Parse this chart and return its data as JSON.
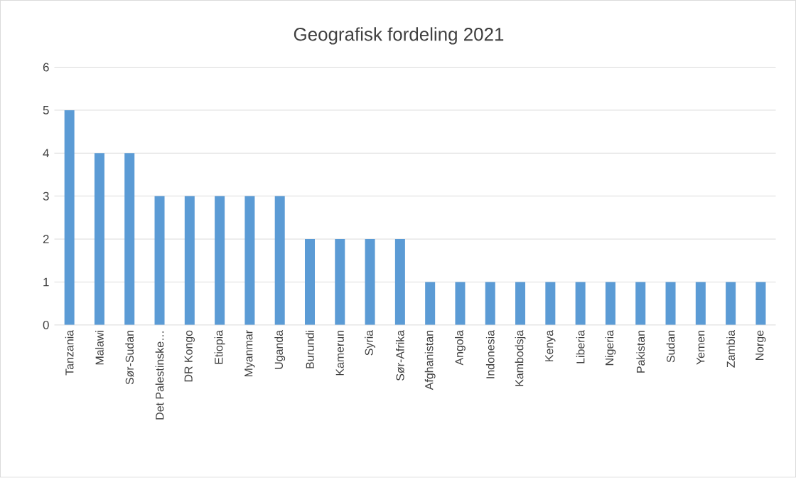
{
  "chart_data": {
    "type": "bar",
    "title": "Geografisk fordeling 2021",
    "categories": [
      "Tanzania",
      "Malawi",
      "Sør-Sudan",
      "Det Palestinske…",
      "DR Kongo",
      "Etiopia",
      "Myanmar",
      "Uganda",
      "Burundi",
      "Kamerun",
      "Syria",
      "Sør-Afrika",
      "Afghanistan",
      "Angola",
      "Indonesia",
      "Kambodsja",
      "Kenya",
      "Liberia",
      "Nigeria",
      "Pakistan",
      "Sudan",
      "Yemen",
      "Zambia",
      "Norge"
    ],
    "values": [
      5,
      4,
      4,
      3,
      3,
      3,
      3,
      3,
      2,
      2,
      2,
      2,
      1,
      1,
      1,
      1,
      1,
      1,
      1,
      1,
      1,
      1,
      1,
      1
    ],
    "color": "#5b9bd5",
    "ylim": [
      0,
      6
    ],
    "yticks": [
      0,
      1,
      2,
      3,
      4,
      5,
      6
    ],
    "grid": "y"
  }
}
